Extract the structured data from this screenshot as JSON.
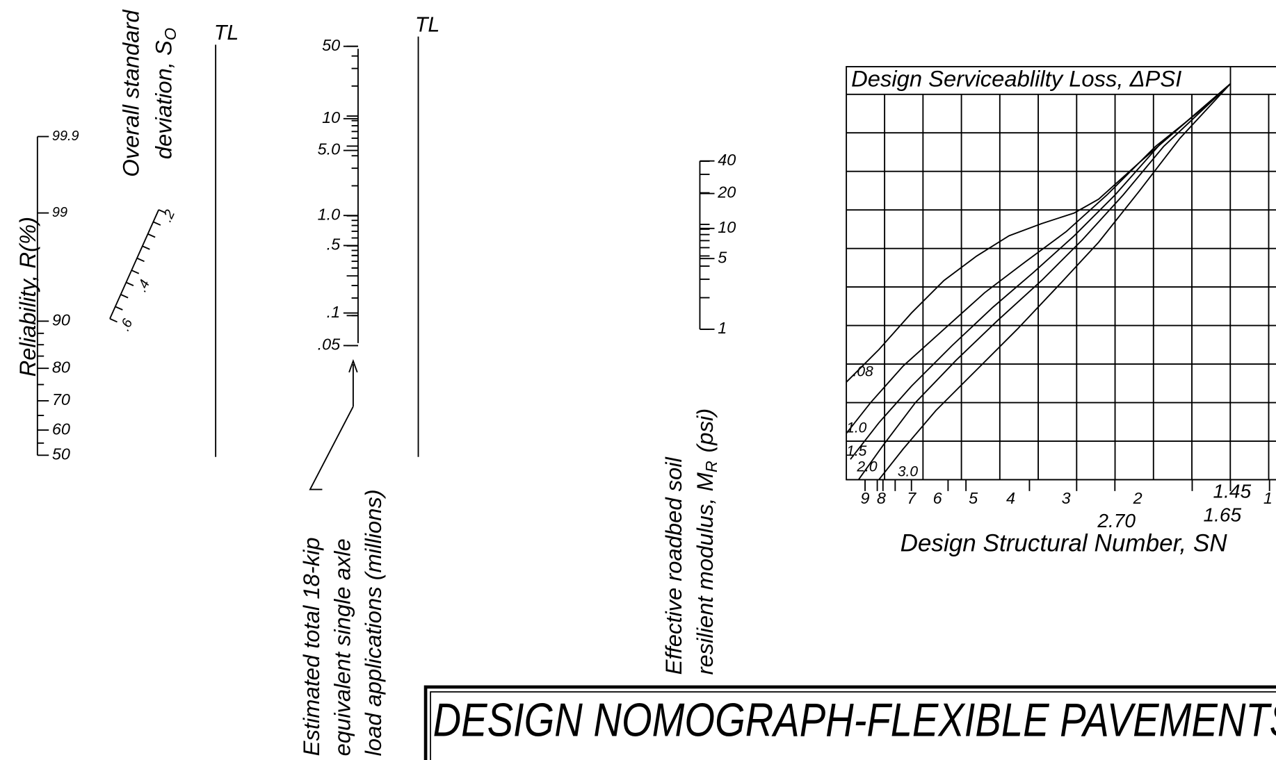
{
  "title": "DESIGN NOMOGRAPH-FLEXIBLE PAVEMENTS",
  "reliability": {
    "label": "Reliability, R(%)",
    "ticks": [
      "99.9",
      "99",
      "90",
      "80",
      "70",
      "60",
      "50"
    ]
  },
  "std_dev": {
    "line1": "Overall standard",
    "line2": "deviation, S",
    "line2_sub": "O",
    "ticks": [
      ".2",
      ".4",
      ".6"
    ]
  },
  "tl_labels": [
    "TL",
    "TL"
  ],
  "esal": {
    "lines": [
      "Estimated total 18-kip",
      "equivalent single axle",
      "load applications (millions)"
    ],
    "ticks": [
      "50",
      "10",
      "5.0",
      "1.0",
      ".5",
      ".1",
      ".05"
    ]
  },
  "modulus": {
    "line1": "Effective roadbed soil",
    "line2": "resilient modulus, M",
    "line2_sub": "R",
    "line2_unit": "(psi)",
    "ticks": [
      "40",
      "20",
      "10",
      "5",
      "1"
    ]
  },
  "chart": {
    "title": "Design Serviceablilty Loss, ΔPSI",
    "x_label": "Design Structural Number, SN",
    "x_ticks": [
      "9",
      "8",
      "7",
      "6",
      "5",
      "4",
      "3",
      "2",
      "1"
    ],
    "extra_labels": [
      "1.45",
      "1.65",
      "2.70"
    ],
    "curve_labels": [
      ".08",
      "1.0",
      "1.5",
      "2.0",
      "3.0"
    ]
  }
}
